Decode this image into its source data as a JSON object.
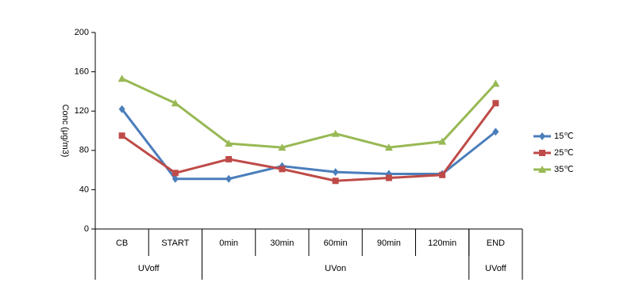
{
  "chart_data": {
    "type": "line",
    "y_label": "Conc (μg/m3)",
    "categories": [
      "CB",
      "START",
      "0min",
      "30min",
      "60min",
      "90min",
      "120min",
      "END"
    ],
    "groups": [
      {
        "label": "UVoff",
        "span": 2
      },
      {
        "label": "UVon",
        "span": 5
      },
      {
        "label": "UVoff",
        "span": 1
      }
    ],
    "series": [
      {
        "name": "15℃",
        "color": "#4a7ebb",
        "marker": "diamond",
        "values": [
          122,
          51,
          51,
          64,
          58,
          56,
          56,
          99
        ]
      },
      {
        "name": "25℃",
        "color": "#be4b48",
        "marker": "square",
        "values": [
          95,
          57,
          71,
          61,
          49,
          52,
          55,
          128
        ]
      },
      {
        "name": "35℃",
        "color": "#98b954",
        "marker": "triangle",
        "values": [
          153,
          128,
          87,
          83,
          97,
          83,
          89,
          148
        ]
      }
    ],
    "ylim": [
      0,
      200
    ],
    "yticks": [
      0,
      40,
      80,
      120,
      160,
      200
    ],
    "legend": "right"
  }
}
